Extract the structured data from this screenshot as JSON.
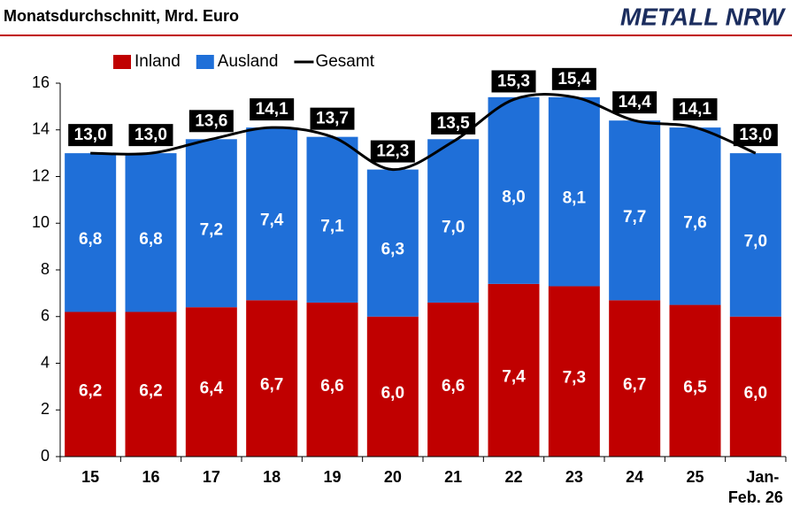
{
  "chart_data": {
    "type": "bar",
    "stacked": true,
    "title": "Monatsdurchschnitt, Mrd. Euro",
    "logo": "METALL NRW",
    "categories": [
      "15",
      "16",
      "17",
      "18",
      "19",
      "20",
      "21",
      "22",
      "23",
      "24",
      "25",
      "Jan-\nFeb. 26"
    ],
    "series": [
      {
        "name": "Inland",
        "color": "#c00000",
        "values": [
          6.2,
          6.2,
          6.4,
          6.7,
          6.6,
          6.0,
          6.6,
          7.4,
          7.3,
          6.7,
          6.5,
          6.0
        ],
        "value_labels": [
          "6,2",
          "6,2",
          "6,4",
          "6,7",
          "6,6",
          "6,0",
          "6,6",
          "7,4",
          "7,3",
          "6,7",
          "6,5",
          "6,0"
        ]
      },
      {
        "name": "Ausland",
        "color": "#1f6fd8",
        "values": [
          6.8,
          6.8,
          7.2,
          7.4,
          7.1,
          6.3,
          7.0,
          8.0,
          8.1,
          7.7,
          7.6,
          7.0
        ],
        "value_labels": [
          "6,8",
          "6,8",
          "7,2",
          "7,4",
          "7,1",
          "6,3",
          "7,0",
          "8,0",
          "8,1",
          "7,7",
          "7,6",
          "7,0"
        ]
      },
      {
        "name": "Gesamt",
        "type": "line",
        "color": "#000000",
        "values": [
          13.0,
          13.0,
          13.6,
          14.1,
          13.7,
          12.3,
          13.5,
          15.3,
          15.4,
          14.4,
          14.1,
          13.0
        ],
        "value_labels": [
          "13,0",
          "13,0",
          "13,6",
          "14,1",
          "13,7",
          "12,3",
          "13,5",
          "15,3",
          "15,4",
          "14,4",
          "14,1",
          "13,0"
        ]
      }
    ],
    "ylim": [
      0,
      16
    ],
    "yticks": [
      0,
      2,
      4,
      6,
      8,
      10,
      12,
      14,
      16
    ],
    "legend": "top"
  }
}
